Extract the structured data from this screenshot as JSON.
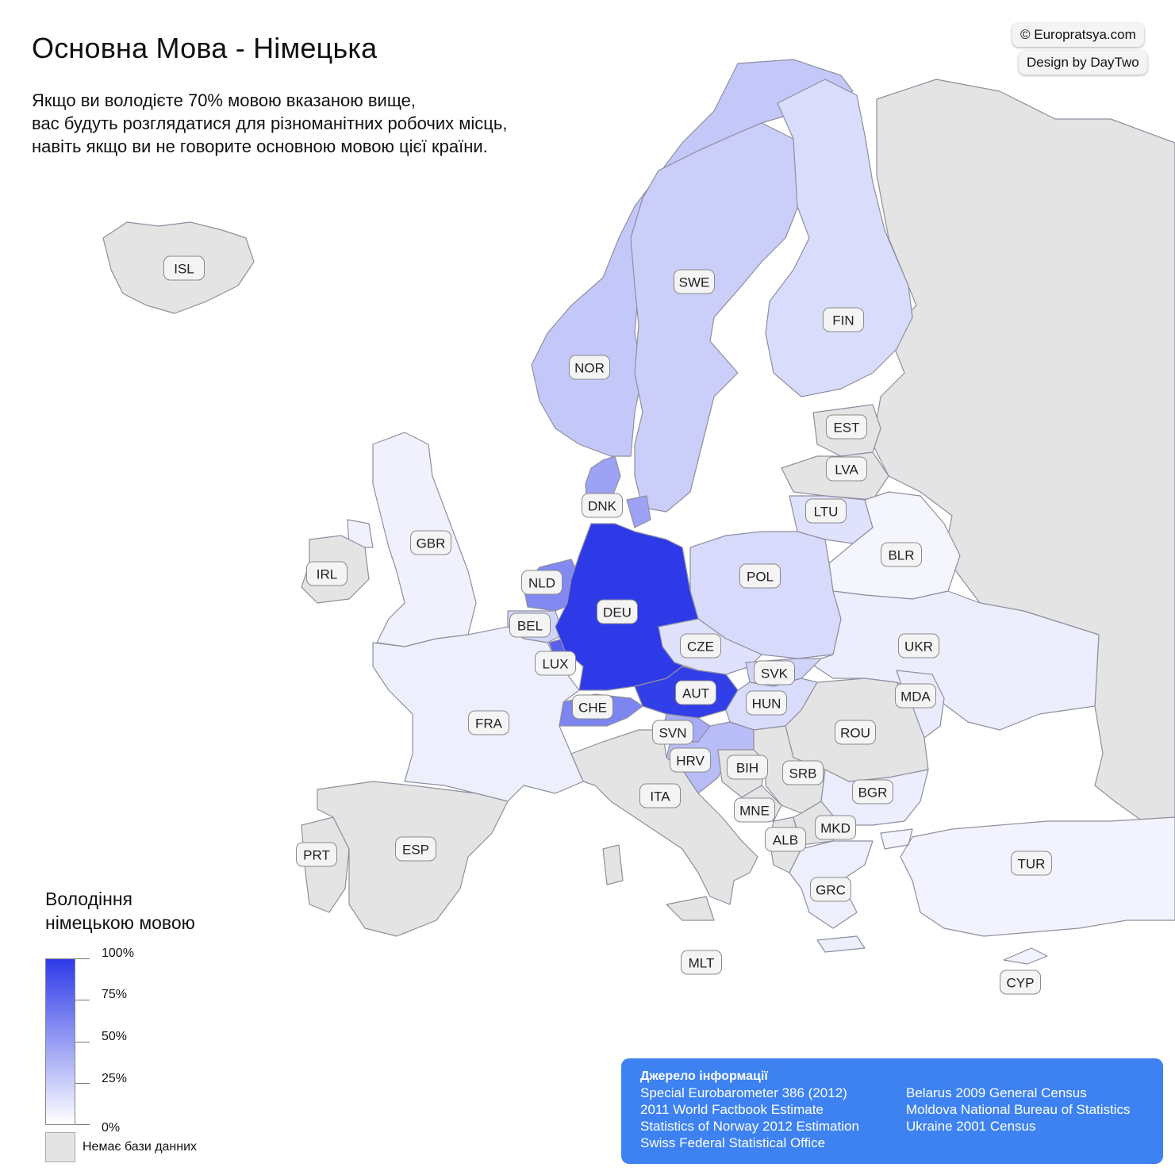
{
  "header": {
    "title": "Основна Мова - Німецька",
    "subtitle": "Якщо ви володієте 70% мовою вказаною вище,\nвас будуть розглядатися для різноманітних робочих місць,\nнавіть якщо ви не говорите основною мовою цієї країни."
  },
  "credits": {
    "site": "© Europratsya.com",
    "design": "Design by DayTwo"
  },
  "legend": {
    "title": "Володіння\nнімецькою мовою",
    "ticks": [
      "100%",
      "75%",
      "50%",
      "25%",
      "0%"
    ],
    "nodata_label": "Немає бази данних",
    "color_max": "#2e3ae8",
    "color_min": "#ffffff",
    "nodata_color": "#e4e4e4"
  },
  "countries": [
    {
      "code": "ISL",
      "level": null
    },
    {
      "code": "NOR",
      "level": 0.28
    },
    {
      "code": "SWE",
      "level": 0.25
    },
    {
      "code": "FIN",
      "level": 0.18
    },
    {
      "code": "EST",
      "level": null
    },
    {
      "code": "LVA",
      "level": null
    },
    {
      "code": "LTU",
      "level": 0.15
    },
    {
      "code": "BLR",
      "level": 0.05
    },
    {
      "code": "DNK",
      "level": 0.47
    },
    {
      "code": "GBR",
      "level": 0.07
    },
    {
      "code": "IRL",
      "level": null
    },
    {
      "code": "NLD",
      "level": 0.6
    },
    {
      "code": "BEL",
      "level": 0.22
    },
    {
      "code": "LUX",
      "level": 0.8
    },
    {
      "code": "DEU",
      "level": 1.0
    },
    {
      "code": "POL",
      "level": 0.19
    },
    {
      "code": "CZE",
      "level": 0.15
    },
    {
      "code": "SVK",
      "level": 0.22
    },
    {
      "code": "AUT",
      "level": 0.98
    },
    {
      "code": "HUN",
      "level": 0.18
    },
    {
      "code": "UKR",
      "level": 0.09
    },
    {
      "code": "MDA",
      "level": 0.1
    },
    {
      "code": "ROU",
      "level": null
    },
    {
      "code": "CHE",
      "level": 0.62
    },
    {
      "code": "FRA",
      "level": 0.08
    },
    {
      "code": "SVN",
      "level": 0.42
    },
    {
      "code": "HRV",
      "level": 0.34
    },
    {
      "code": "BIH",
      "level": null
    },
    {
      "code": "SRB",
      "level": null
    },
    {
      "code": "BGR",
      "level": 0.09
    },
    {
      "code": "ITA",
      "level": null
    },
    {
      "code": "MNE",
      "level": null
    },
    {
      "code": "ALB",
      "level": null
    },
    {
      "code": "MKD",
      "level": null
    },
    {
      "code": "PRT",
      "level": null
    },
    {
      "code": "ESP",
      "level": null
    },
    {
      "code": "GRC",
      "level": 0.08
    },
    {
      "code": "TUR",
      "level": 0.06
    },
    {
      "code": "MLT",
      "level": null
    },
    {
      "code": "CYP",
      "level": 0.06
    },
    {
      "code": "RUS",
      "level": null
    }
  ],
  "sources": {
    "title": "Джерело інформації",
    "left": [
      "Special Eurobarometer 386 (2012)",
      "2011 World Factbook Estimate",
      "Statistics of Norway 2012 Estimation",
      "Swiss Federal Statistical Office"
    ],
    "right": [
      "Belarus 2009 General Census",
      "Moldova National Bureau of Statistics",
      "Ukraine 2001 Census"
    ]
  }
}
